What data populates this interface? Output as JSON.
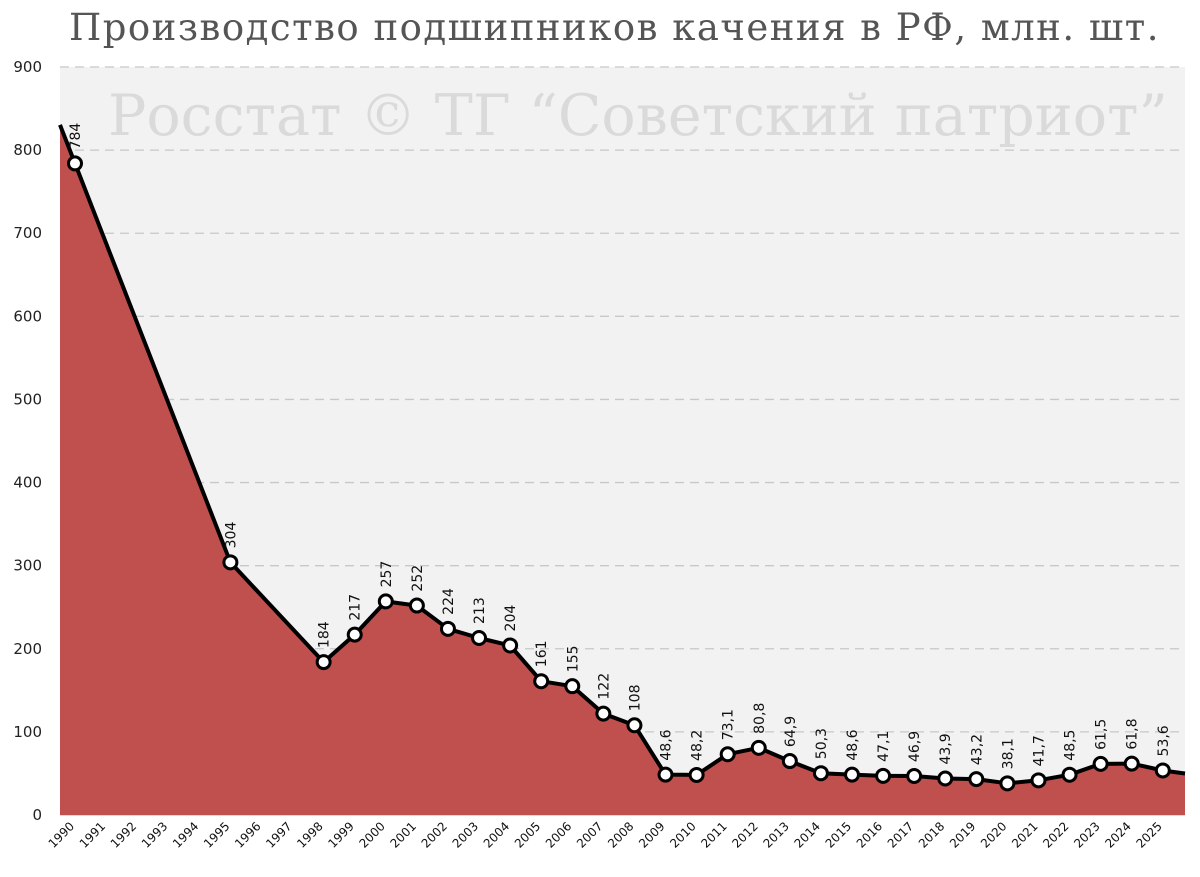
{
  "chart_data": {
    "type": "area",
    "title": "Производство подшипников качения в РФ, млн. шт.",
    "watermark": "Росстат © ТГ “Советский патриот”",
    "xlabel": "",
    "ylabel": "",
    "ylim": [
      0,
      900
    ],
    "yticks": [
      0,
      100,
      200,
      300,
      400,
      500,
      600,
      700,
      800,
      900
    ],
    "x_categories": [
      "1990",
      "1991",
      "1992",
      "1993",
      "1994",
      "1995",
      "1996",
      "1997",
      "1998",
      "1999",
      "2000",
      "2001",
      "2002",
      "2003",
      "2004",
      "2005",
      "2006",
      "2007",
      "2008",
      "2009",
      "2010",
      "2011",
      "2012",
      "2013",
      "2014",
      "2015",
      "2016",
      "2017",
      "2018",
      "2019",
      "2020",
      "2021",
      "2022",
      "2023",
      "2024",
      "2025"
    ],
    "points": [
      {
        "x": "1990",
        "y": 784,
        "label": "784"
      },
      {
        "x": "1995",
        "y": 304,
        "label": "304"
      },
      {
        "x": "1998",
        "y": 184,
        "label": "184"
      },
      {
        "x": "1999",
        "y": 217,
        "label": "217"
      },
      {
        "x": "2000",
        "y": 257,
        "label": "257"
      },
      {
        "x": "2001",
        "y": 252,
        "label": "252"
      },
      {
        "x": "2002",
        "y": 224,
        "label": "224"
      },
      {
        "x": "2003",
        "y": 213,
        "label": "213"
      },
      {
        "x": "2004",
        "y": 204,
        "label": "204"
      },
      {
        "x": "2005",
        "y": 161,
        "label": "161"
      },
      {
        "x": "2006",
        "y": 155,
        "label": "155"
      },
      {
        "x": "2007",
        "y": 122,
        "label": "122"
      },
      {
        "x": "2008",
        "y": 108,
        "label": "108"
      },
      {
        "x": "2009",
        "y": 48.6,
        "label": "48,6"
      },
      {
        "x": "2010",
        "y": 48.2,
        "label": "48,2"
      },
      {
        "x": "2011",
        "y": 73.1,
        "label": "73,1"
      },
      {
        "x": "2012",
        "y": 80.8,
        "label": "80,8"
      },
      {
        "x": "2013",
        "y": 64.9,
        "label": "64,9"
      },
      {
        "x": "2014",
        "y": 50.3,
        "label": "50,3"
      },
      {
        "x": "2015",
        "y": 48.6,
        "label": "48,6"
      },
      {
        "x": "2016",
        "y": 47.1,
        "label": "47,1"
      },
      {
        "x": "2017",
        "y": 46.9,
        "label": "46,9"
      },
      {
        "x": "2018",
        "y": 43.9,
        "label": "43,9"
      },
      {
        "x": "2019",
        "y": 43.2,
        "label": "43,2"
      },
      {
        "x": "2020",
        "y": 38.1,
        "label": "38,1"
      },
      {
        "x": "2021",
        "y": 41.7,
        "label": "41,7"
      },
      {
        "x": "2022",
        "y": 48.5,
        "label": "48,5"
      },
      {
        "x": "2023",
        "y": 61.5,
        "label": "61,5"
      },
      {
        "x": "2024",
        "y": 61.8,
        "label": "61,8"
      },
      {
        "x": "2025",
        "y": 53.6,
        "label": "53,6"
      }
    ],
    "grid": true,
    "legend": "none",
    "colors": {
      "area_fill": "#c0504d",
      "line": "#000000",
      "marker_fill": "#ffffff",
      "plot_background": "#f2f2f2",
      "grid": "#c8c8c8"
    }
  }
}
